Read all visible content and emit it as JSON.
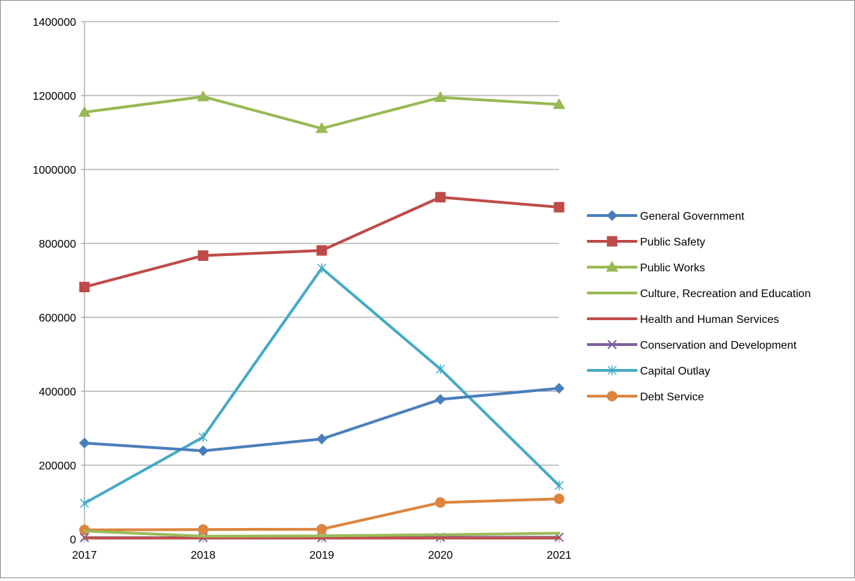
{
  "chart_data": {
    "type": "line",
    "title": "",
    "xlabel": "",
    "ylabel": "",
    "x": [
      "2017",
      "2018",
      "2019",
      "2020",
      "2021"
    ],
    "ylim": [
      0,
      1400000
    ],
    "yticks": [
      "0",
      "200000",
      "400000",
      "600000",
      "800000",
      "1000000",
      "1200000",
      "1400000"
    ],
    "grid": "horizontal",
    "legend_position": "right",
    "series": [
      {
        "name": "General Government",
        "color": "#4a7ebb",
        "marker": "diamond",
        "values": [
          260000,
          239000,
          271000,
          378000,
          408000
        ]
      },
      {
        "name": "Public Safety",
        "color": "#be4b48",
        "marker": "square",
        "values": [
          682000,
          767000,
          781000,
          925000,
          898000
        ]
      },
      {
        "name": "Public Works",
        "color": "#98b954",
        "marker": "triangle",
        "values": [
          1155000,
          1197000,
          1111000,
          1195000,
          1176000
        ]
      },
      {
        "name": "Culture, Recreation and Education",
        "color": "#9bbb59",
        "marker": "none",
        "values": [
          22000,
          8000,
          9000,
          12000,
          16000
        ]
      },
      {
        "name": "Health and Human Services",
        "color": "#c0504d",
        "marker": "none",
        "values": [
          3000,
          3000,
          3000,
          3000,
          3000
        ]
      },
      {
        "name": "Conservation and Development",
        "color": "#7d60a0",
        "marker": "x",
        "values": [
          4000,
          4000,
          4000,
          5000,
          5000
        ]
      },
      {
        "name": "Capital Outlay",
        "color": "#46aac5",
        "marker": "star",
        "values": [
          97000,
          276000,
          733000,
          460000,
          145000
        ]
      },
      {
        "name": "Debt Service",
        "color": "#dc853e",
        "marker": "circle",
        "values": [
          25000,
          26000,
          27000,
          99000,
          109000
        ]
      }
    ]
  }
}
